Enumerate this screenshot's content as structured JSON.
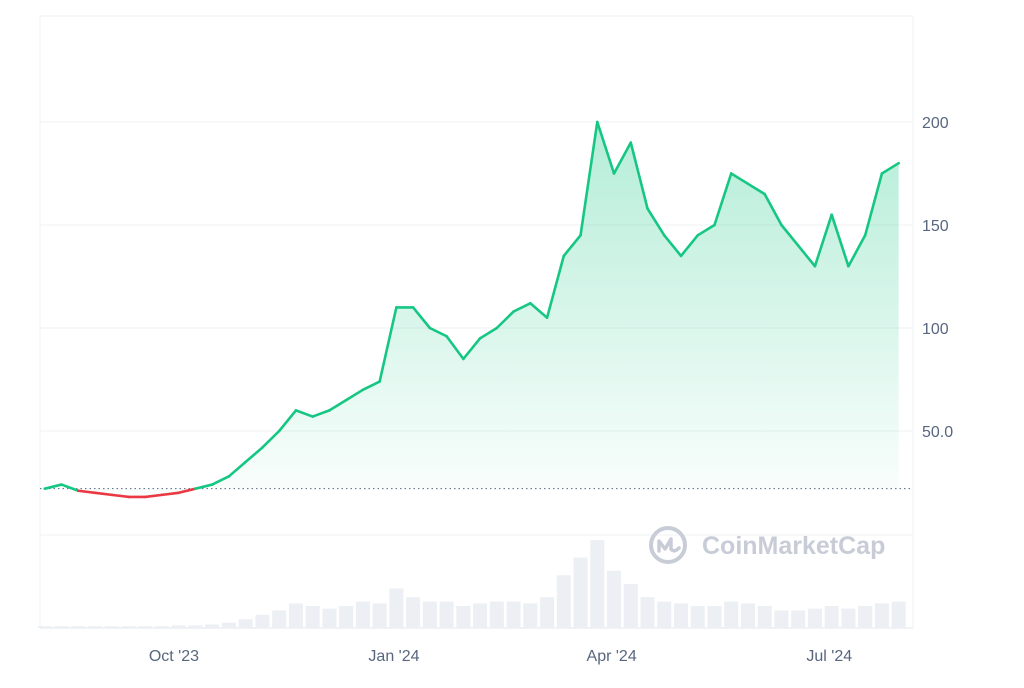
{
  "watermark": {
    "text": "CoinMarketCap",
    "icon": "coinmarketcap-logo-icon"
  },
  "colors": {
    "up": "#16c784",
    "down": "#ea3943",
    "grid": "#eff2f5",
    "axis_text": "#58667e",
    "baseline": "#58667e",
    "volume": "#eceff3",
    "watermark": "#c7ccd6"
  },
  "chart_data": {
    "type": "area",
    "title": "",
    "xlabel": "",
    "ylabel": "",
    "x_ticks": [
      "Oct '23",
      "Jan '24",
      "Apr '24",
      "Jul '24"
    ],
    "y_ticks": [
      "50.0",
      "100",
      "150",
      "200"
    ],
    "y_tick_values": [
      50,
      100,
      150,
      200
    ],
    "ylim": [
      -50,
      250
    ],
    "baseline_value": 22,
    "grid": true,
    "line_style": "green above baseline, red below baseline, gradient area fill",
    "series": [
      {
        "x": [
          "2023-08-08",
          "2023-08-15",
          "2023-08-22",
          "2023-08-29",
          "2023-09-05",
          "2023-09-12",
          "2023-09-19",
          "2023-09-26",
          "2023-10-03",
          "2023-10-10",
          "2023-10-17",
          "2023-10-24",
          "2023-10-31",
          "2023-11-07",
          "2023-11-14",
          "2023-11-21",
          "2023-11-28",
          "2023-12-05",
          "2023-12-12",
          "2023-12-19",
          "2023-12-26",
          "2024-01-02",
          "2024-01-09",
          "2024-01-16",
          "2024-01-23",
          "2024-01-30",
          "2024-02-06",
          "2024-02-13",
          "2024-02-20",
          "2024-02-27",
          "2024-03-05",
          "2024-03-12",
          "2024-03-19",
          "2024-03-26",
          "2024-04-02",
          "2024-04-09",
          "2024-04-16",
          "2024-04-23",
          "2024-04-30",
          "2024-05-07",
          "2024-05-14",
          "2024-05-21",
          "2024-05-28",
          "2024-06-04",
          "2024-06-11",
          "2024-06-18",
          "2024-06-25",
          "2024-07-02",
          "2024-07-09",
          "2024-07-16",
          "2024-07-23",
          "2024-07-30"
        ],
        "values": [
          22,
          24,
          21,
          20,
          19,
          18,
          18,
          19,
          20,
          22,
          24,
          28,
          35,
          42,
          50,
          60,
          57,
          60,
          65,
          70,
          74,
          110,
          110,
          100,
          96,
          85,
          95,
          100,
          108,
          112,
          105,
          135,
          145,
          200,
          175,
          190,
          158,
          145,
          135,
          145,
          150,
          175,
          170,
          165,
          150,
          140,
          130,
          155,
          130,
          145,
          175,
          180
        ]
      }
    ],
    "volume": {
      "x": [
        "2023-08-08",
        "2023-08-15",
        "2023-08-22",
        "2023-08-29",
        "2023-09-05",
        "2023-09-12",
        "2023-09-19",
        "2023-09-26",
        "2023-10-03",
        "2023-10-10",
        "2023-10-17",
        "2023-10-24",
        "2023-10-31",
        "2023-11-07",
        "2023-11-14",
        "2023-11-21",
        "2023-11-28",
        "2023-12-05",
        "2023-12-12",
        "2023-12-19",
        "2023-12-26",
        "2024-01-02",
        "2024-01-09",
        "2024-01-16",
        "2024-01-23",
        "2024-01-30",
        "2024-02-06",
        "2024-02-13",
        "2024-02-20",
        "2024-02-27",
        "2024-03-05",
        "2024-03-12",
        "2024-03-19",
        "2024-03-26",
        "2024-04-02",
        "2024-04-09",
        "2024-04-16",
        "2024-04-23",
        "2024-04-30",
        "2024-05-07",
        "2024-05-14",
        "2024-05-21",
        "2024-05-28",
        "2024-06-04",
        "2024-06-11",
        "2024-06-18",
        "2024-06-25",
        "2024-07-02",
        "2024-07-09",
        "2024-07-16",
        "2024-07-23",
        "2024-07-30"
      ],
      "values": [
        0.02,
        0.02,
        0.02,
        0.02,
        0.02,
        0.02,
        0.02,
        0.02,
        0.03,
        0.03,
        0.04,
        0.06,
        0.1,
        0.15,
        0.2,
        0.28,
        0.25,
        0.22,
        0.25,
        0.3,
        0.28,
        0.45,
        0.35,
        0.3,
        0.3,
        0.25,
        0.28,
        0.3,
        0.3,
        0.28,
        0.35,
        0.6,
        0.8,
        1.0,
        0.65,
        0.5,
        0.35,
        0.3,
        0.28,
        0.25,
        0.25,
        0.3,
        0.28,
        0.25,
        0.2,
        0.2,
        0.22,
        0.25,
        0.22,
        0.25,
        0.28,
        0.3
      ]
    }
  }
}
